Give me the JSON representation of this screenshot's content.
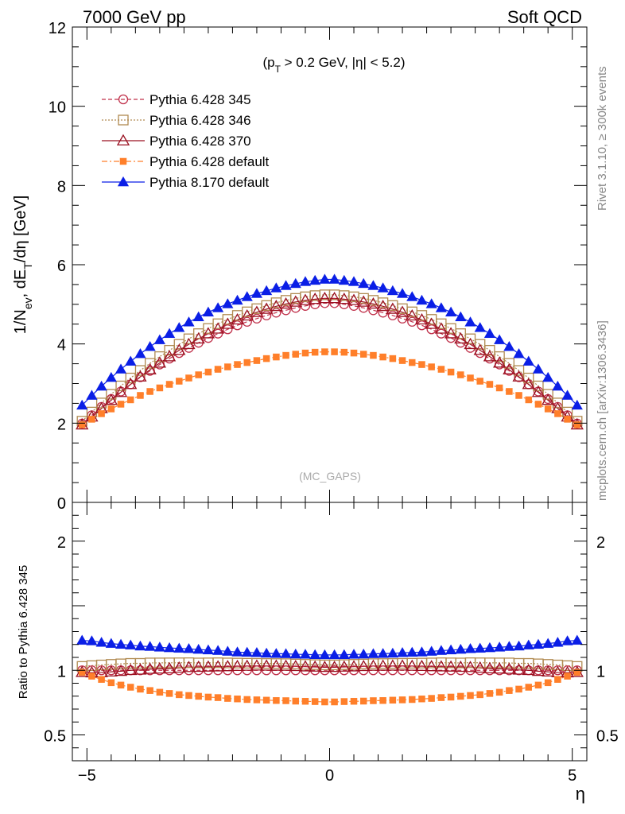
{
  "header": {
    "left": "7000 GeV pp",
    "right": "Soft QCD"
  },
  "side_labels": {
    "top": "Rivet 3.1.10, ≥ 300k events",
    "bottom": "mcplots.cern.ch [arXiv:1306.3436]"
  },
  "watermark": "(MC_GAPS)",
  "cut_text": "(p_T > 0.2 GeV, |η| < 5.2)",
  "chart_data": [
    {
      "type": "scatter",
      "panel": "main",
      "ylabel": "1/N_ev, dE_T/dη [GeV]",
      "xlabel": "η",
      "xlim": [
        -5.3,
        5.3
      ],
      "ylim": [
        0,
        12
      ],
      "yticks": [
        "0",
        "2",
        "4",
        "6",
        "8",
        "10",
        "12"
      ],
      "legend_position": "top-left",
      "x": [
        -5.1,
        -4.9,
        -4.7,
        -4.5,
        -4.3,
        -4.1,
        -3.9,
        -3.7,
        -3.5,
        -3.3,
        -3.1,
        -2.9,
        -2.7,
        -2.5,
        -2.3,
        -2.1,
        -1.9,
        -1.7,
        -1.5,
        -1.3,
        -1.1,
        -0.9,
        -0.7,
        -0.5,
        -0.3,
        -0.1,
        0.1,
        0.3,
        0.5,
        0.7,
        0.9,
        1.1,
        1.3,
        1.5,
        1.7,
        1.9,
        2.1,
        2.3,
        2.5,
        2.7,
        2.9,
        3.1,
        3.3,
        3.5,
        3.7,
        3.9,
        4.1,
        4.3,
        4.5,
        4.7,
        4.9,
        5.1
      ],
      "series": [
        {
          "name": "Pythia 6.428 345",
          "color": "#c0304a",
          "marker": "circle-open",
          "line": "dashed",
          "values": [
            1.99,
            2.2,
            2.41,
            2.61,
            2.8,
            2.98,
            3.16,
            3.32,
            3.48,
            3.63,
            3.77,
            3.9,
            4.03,
            4.15,
            4.26,
            4.37,
            4.47,
            4.56,
            4.64,
            4.72,
            4.79,
            4.85,
            4.91,
            4.96,
            5.0,
            5.03,
            5.03,
            5.0,
            4.96,
            4.91,
            4.85,
            4.79,
            4.72,
            4.64,
            4.56,
            4.47,
            4.37,
            4.26,
            4.15,
            4.03,
            3.9,
            3.77,
            3.63,
            3.48,
            3.32,
            3.16,
            2.98,
            2.8,
            2.61,
            2.41,
            2.2,
            1.99
          ]
        },
        {
          "name": "Pythia 6.428 346",
          "color": "#b08a50",
          "marker": "square-open",
          "line": "dotted",
          "values": [
            2.05,
            2.28,
            2.51,
            2.73,
            2.94,
            3.14,
            3.33,
            3.51,
            3.68,
            3.84,
            3.99,
            4.13,
            4.26,
            4.39,
            4.51,
            4.62,
            4.72,
            4.81,
            4.89,
            4.97,
            5.04,
            5.1,
            5.15,
            5.19,
            5.22,
            5.24,
            5.24,
            5.22,
            5.19,
            5.15,
            5.1,
            5.04,
            4.97,
            4.89,
            4.81,
            4.72,
            4.62,
            4.51,
            4.39,
            4.26,
            4.13,
            3.99,
            3.84,
            3.68,
            3.51,
            3.33,
            3.14,
            2.94,
            2.73,
            2.51,
            2.28,
            2.05
          ]
        },
        {
          "name": "Pythia 6.428 370",
          "color": "#9a1020",
          "marker": "triangle-open",
          "line": "solid",
          "values": [
            1.96,
            2.16,
            2.37,
            2.58,
            2.78,
            2.98,
            3.17,
            3.35,
            3.52,
            3.68,
            3.84,
            3.99,
            4.13,
            4.26,
            4.38,
            4.5,
            4.61,
            4.71,
            4.8,
            4.88,
            4.95,
            5.01,
            5.06,
            5.1,
            5.13,
            5.15,
            5.15,
            5.13,
            5.1,
            5.06,
            5.01,
            4.95,
            4.88,
            4.8,
            4.71,
            4.61,
            4.5,
            4.38,
            4.26,
            4.13,
            3.99,
            3.84,
            3.68,
            3.52,
            3.35,
            3.17,
            2.98,
            2.78,
            2.58,
            2.37,
            2.16,
            1.96
          ]
        },
        {
          "name": "Pythia 6.428 default",
          "color": "#ff7f2a",
          "marker": "square-filled",
          "line": "dashdot",
          "values": [
            1.96,
            2.1,
            2.24,
            2.36,
            2.48,
            2.59,
            2.7,
            2.8,
            2.89,
            2.98,
            3.06,
            3.14,
            3.22,
            3.29,
            3.36,
            3.42,
            3.48,
            3.53,
            3.58,
            3.63,
            3.67,
            3.71,
            3.74,
            3.77,
            3.79,
            3.8,
            3.8,
            3.79,
            3.77,
            3.74,
            3.71,
            3.67,
            3.63,
            3.58,
            3.53,
            3.48,
            3.42,
            3.36,
            3.29,
            3.22,
            3.14,
            3.06,
            2.98,
            2.89,
            2.8,
            2.7,
            2.59,
            2.48,
            2.36,
            2.24,
            2.1,
            1.96
          ]
        },
        {
          "name": "Pythia 8.170 default",
          "color": "#0a1ee6",
          "marker": "triangle-filled",
          "line": "solid",
          "values": [
            2.45,
            2.7,
            2.93,
            3.15,
            3.36,
            3.56,
            3.75,
            3.93,
            4.1,
            4.26,
            4.41,
            4.55,
            4.68,
            4.8,
            4.91,
            5.01,
            5.1,
            5.19,
            5.27,
            5.34,
            5.41,
            5.47,
            5.52,
            5.57,
            5.6,
            5.63,
            5.63,
            5.6,
            5.57,
            5.52,
            5.47,
            5.41,
            5.34,
            5.27,
            5.19,
            5.1,
            5.01,
            4.91,
            4.8,
            4.68,
            4.55,
            4.41,
            4.26,
            4.1,
            3.93,
            3.75,
            3.56,
            3.36,
            3.15,
            2.93,
            2.7,
            2.45
          ]
        }
      ]
    },
    {
      "type": "scatter",
      "panel": "ratio",
      "ylabel": "Ratio to Pythia 6.428 345",
      "xlabel": "η",
      "xlim": [
        -5.3,
        5.3
      ],
      "ylim": [
        0.3,
        2.3
      ],
      "yticks": [
        "0.5",
        "1",
        "2"
      ],
      "xticks": [
        "−5",
        "0",
        "5"
      ],
      "reference_line": 1
    }
  ]
}
